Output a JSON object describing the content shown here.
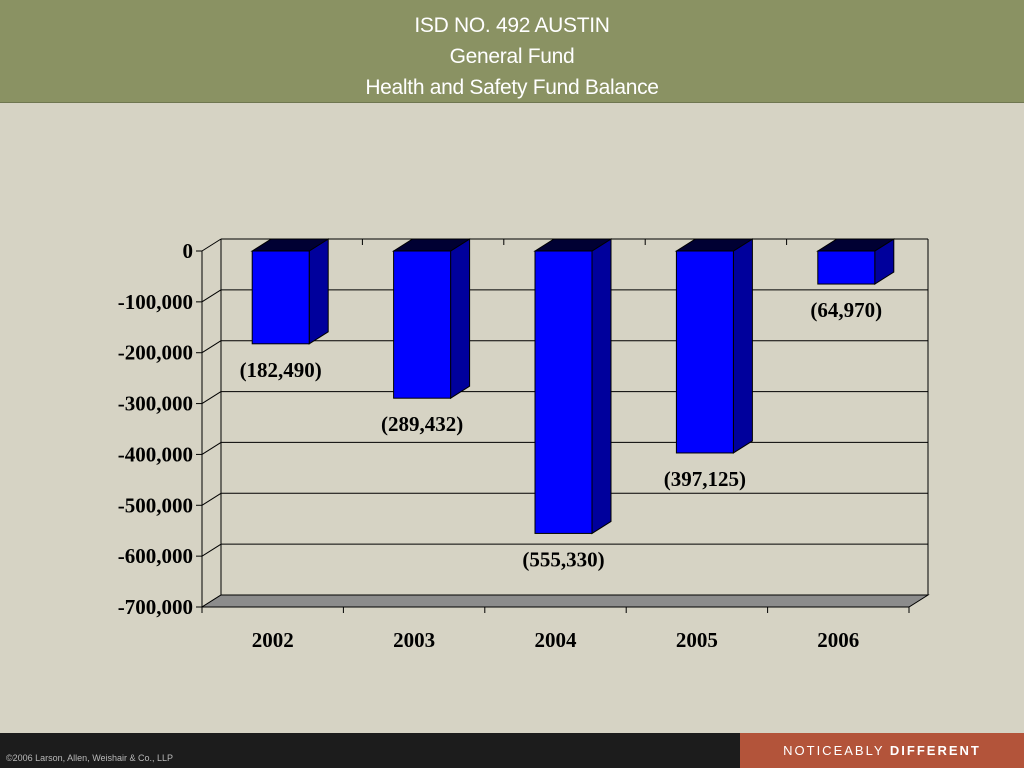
{
  "header": {
    "line1": "ISD NO. 492 AUSTIN",
    "line2": "General Fund",
    "line3": "Health and Safety Fund Balance"
  },
  "chart_data": {
    "type": "bar",
    "style": "3d-column",
    "categories": [
      "2002",
      "2003",
      "2004",
      "2005",
      "2006"
    ],
    "values": [
      -182490,
      -289432,
      -555330,
      -397125,
      -64970
    ],
    "data_labels": [
      "(182,490)",
      "(289,432)",
      "(555,330)",
      "(397,125)",
      "(64,970)"
    ],
    "yticks": [
      0,
      -100000,
      -200000,
      -300000,
      -400000,
      -500000,
      -600000,
      -700000
    ],
    "ytick_labels": [
      "0",
      "-100,000",
      "-200,000",
      "-300,000",
      "-400,000",
      "-500,000",
      "-600,000",
      "-700,000"
    ],
    "ylim": [
      -700000,
      0
    ],
    "grid": true,
    "legend": "none",
    "title": "",
    "xlabel": "",
    "ylabel": "",
    "colors": {
      "bar_front": "#0000ff",
      "bar_side": "#00009c",
      "bar_top": "#000033",
      "floor": "#8c8c8c",
      "plot_bg": "#d6d3c4"
    }
  },
  "footer": {
    "copyright": "©2006 Larson, Allen, Weishair & Co., LLP",
    "tagline_light": "NOTICEABLY",
    "tagline_bold": "DIFFERENT"
  }
}
